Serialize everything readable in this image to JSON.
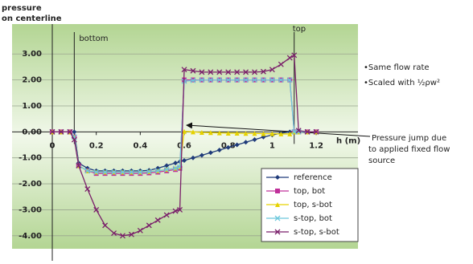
{
  "chart_data": {
    "type": "line",
    "ylabel_lines": [
      "pressure",
      "on centerline"
    ],
    "xlabel": "h (m)",
    "x": [
      0,
      0.04,
      0.08,
      0.1,
      0.12,
      0.16,
      0.2,
      0.24,
      0.28,
      0.32,
      0.36,
      0.4,
      0.44,
      0.48,
      0.52,
      0.56,
      0.58,
      0.6,
      0.64,
      0.68,
      0.72,
      0.76,
      0.8,
      0.84,
      0.88,
      0.92,
      0.96,
      1.0,
      1.04,
      1.08,
      1.1,
      1.12,
      1.16,
      1.2
    ],
    "series": [
      {
        "name": "reference",
        "color": "#1f3b7a",
        "marker": "diamond",
        "values": [
          0,
          0,
          0,
          0,
          -1.2,
          -1.4,
          -1.5,
          -1.5,
          -1.5,
          -1.5,
          -1.5,
          -1.5,
          -1.48,
          -1.4,
          -1.3,
          -1.2,
          -1.15,
          -1.1,
          -1.0,
          -0.9,
          -0.8,
          -0.7,
          -0.6,
          -0.5,
          -0.4,
          -0.3,
          -0.2,
          -0.12,
          -0.05,
          0,
          0,
          0,
          0,
          0
        ]
      },
      {
        "name": "top, bot",
        "color": "#c0309a",
        "marker": "square",
        "values": [
          0,
          0,
          0,
          -0.2,
          -1.3,
          -1.5,
          -1.6,
          -1.6,
          -1.6,
          -1.6,
          -1.6,
          -1.6,
          -1.58,
          -1.55,
          -1.5,
          -1.45,
          -1.4,
          2.0,
          2.0,
          2.0,
          2.0,
          2.0,
          2.0,
          2.0,
          2.0,
          2.0,
          2.0,
          2.0,
          2.0,
          2.0,
          0,
          0,
          0,
          0
        ]
      },
      {
        "name": "top, s-bot",
        "color": "#e6d200",
        "marker": "triangle",
        "values": [
          0,
          0,
          0,
          -0.2,
          -1.3,
          -1.5,
          -1.55,
          -1.55,
          -1.55,
          -1.55,
          -1.55,
          -1.55,
          -1.53,
          -1.5,
          -1.45,
          -1.4,
          -1.35,
          0.02,
          0,
          -0.02,
          -0.03,
          -0.04,
          -0.05,
          -0.05,
          -0.06,
          -0.06,
          -0.07,
          -0.07,
          -0.08,
          -0.08,
          0,
          0,
          0,
          0
        ]
      },
      {
        "name": "s-top, bot",
        "color": "#6cc8dc",
        "marker": "x",
        "values": [
          0,
          0,
          0,
          -0.2,
          -1.3,
          -1.5,
          -1.55,
          -1.55,
          -1.55,
          -1.55,
          -1.55,
          -1.55,
          -1.53,
          -1.5,
          -1.45,
          -1.4,
          -1.35,
          1.95,
          1.98,
          2.0,
          2.0,
          2.0,
          2.0,
          2.0,
          2.0,
          2.0,
          2.0,
          2.0,
          2.0,
          2.0,
          0,
          0,
          0,
          0
        ]
      },
      {
        "name": "s-top, s-bot",
        "color": "#7a1f6a",
        "marker": "x",
        "values": [
          0,
          0,
          0,
          -0.3,
          -1.3,
          -2.2,
          -3.0,
          -3.6,
          -3.9,
          -4.0,
          -3.95,
          -3.8,
          -3.6,
          -3.4,
          -3.2,
          -3.05,
          -3.0,
          2.4,
          2.35,
          2.3,
          2.3,
          2.3,
          2.3,
          2.3,
          2.3,
          2.3,
          2.32,
          2.4,
          2.6,
          2.85,
          2.95,
          0.05,
          0,
          0
        ]
      }
    ],
    "xlim": [
      0,
      1.39
    ],
    "xticks": [
      0,
      0.2,
      0.4,
      0.6,
      0.8,
      1,
      1.2
    ],
    "ylim": [
      -4.5,
      4.15
    ],
    "yticks": [
      {
        "value": 3,
        "label": "3.00"
      },
      {
        "value": 2,
        "label": "2.00"
      },
      {
        "value": 1,
        "label": "1.00"
      },
      {
        "value": 0,
        "label": "0.00"
      },
      {
        "value": -1,
        "label": "-1.00"
      },
      {
        "value": -2,
        "label": "-2.00"
      },
      {
        "value": -3,
        "label": "-3.00"
      },
      {
        "value": -4,
        "label": "-4.00"
      }
    ],
    "grid": true,
    "legend": "lower right",
    "vlines": [
      {
        "x": 0.1,
        "label": "bottom"
      },
      {
        "x": 1.1,
        "label": "top"
      }
    ],
    "notes": [
      "•Same flow rate",
      "•Scaled with ½ρw²"
    ],
    "jump_note": [
      "Pressure jump due",
      "to applied fixed flow",
      "source"
    ]
  }
}
